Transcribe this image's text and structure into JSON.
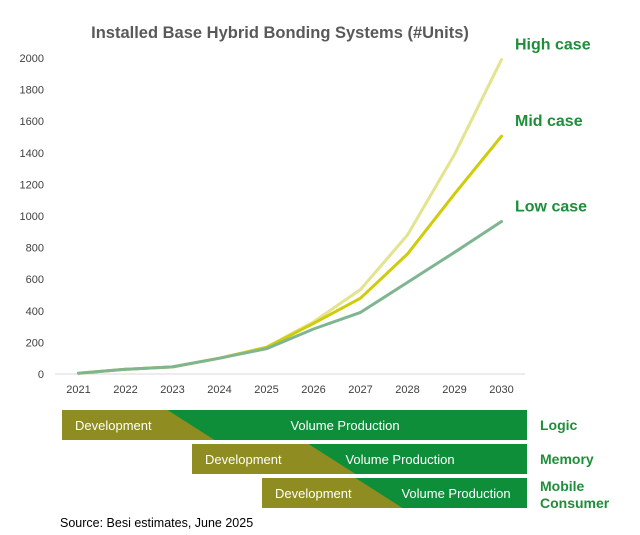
{
  "chart_data": {
    "type": "line",
    "title": "Installed Base Hybrid Bonding Systems (#Units)",
    "xlabel": "",
    "ylabel": "",
    "categories": [
      "2021",
      "2022",
      "2023",
      "2024",
      "2025",
      "2026",
      "2027",
      "2028",
      "2029",
      "2030"
    ],
    "ylim": [
      0,
      2000
    ],
    "yticks": [
      0,
      200,
      400,
      600,
      800,
      1000,
      1200,
      1400,
      1600,
      1800,
      2000
    ],
    "grid": false,
    "series": [
      {
        "name": "High case",
        "color": "#e4e38e",
        "values": [
          5,
          30,
          45,
          100,
          170,
          330,
          535,
          880,
          1390,
          1990
        ]
      },
      {
        "name": "Mid case",
        "color": "#cfcc0a",
        "values": [
          5,
          30,
          45,
          100,
          168,
          320,
          480,
          760,
          1140,
          1505
        ]
      },
      {
        "name": "Low case",
        "color": "#7fb591",
        "values": [
          5,
          30,
          45,
          100,
          160,
          285,
          390,
          580,
          770,
          965
        ]
      }
    ]
  },
  "label_color": "#1f8e3b",
  "phases": [
    {
      "label": "Logic",
      "development": "Development",
      "production": "Volume Production",
      "transition": [
        "2023",
        "2024"
      ]
    },
    {
      "label": "Memory",
      "development": "Development",
      "production": "Volume Production",
      "transition": [
        "2026",
        "2027"
      ]
    },
    {
      "label": "Mobile Consumer",
      "development": "Development",
      "production": "Volume Production",
      "transition": [
        "2027",
        "2028"
      ]
    }
  ],
  "colors": {
    "development": "#8f8c21",
    "production": "#0f8e3a"
  },
  "source": "Source: Besi estimates, June 2025"
}
